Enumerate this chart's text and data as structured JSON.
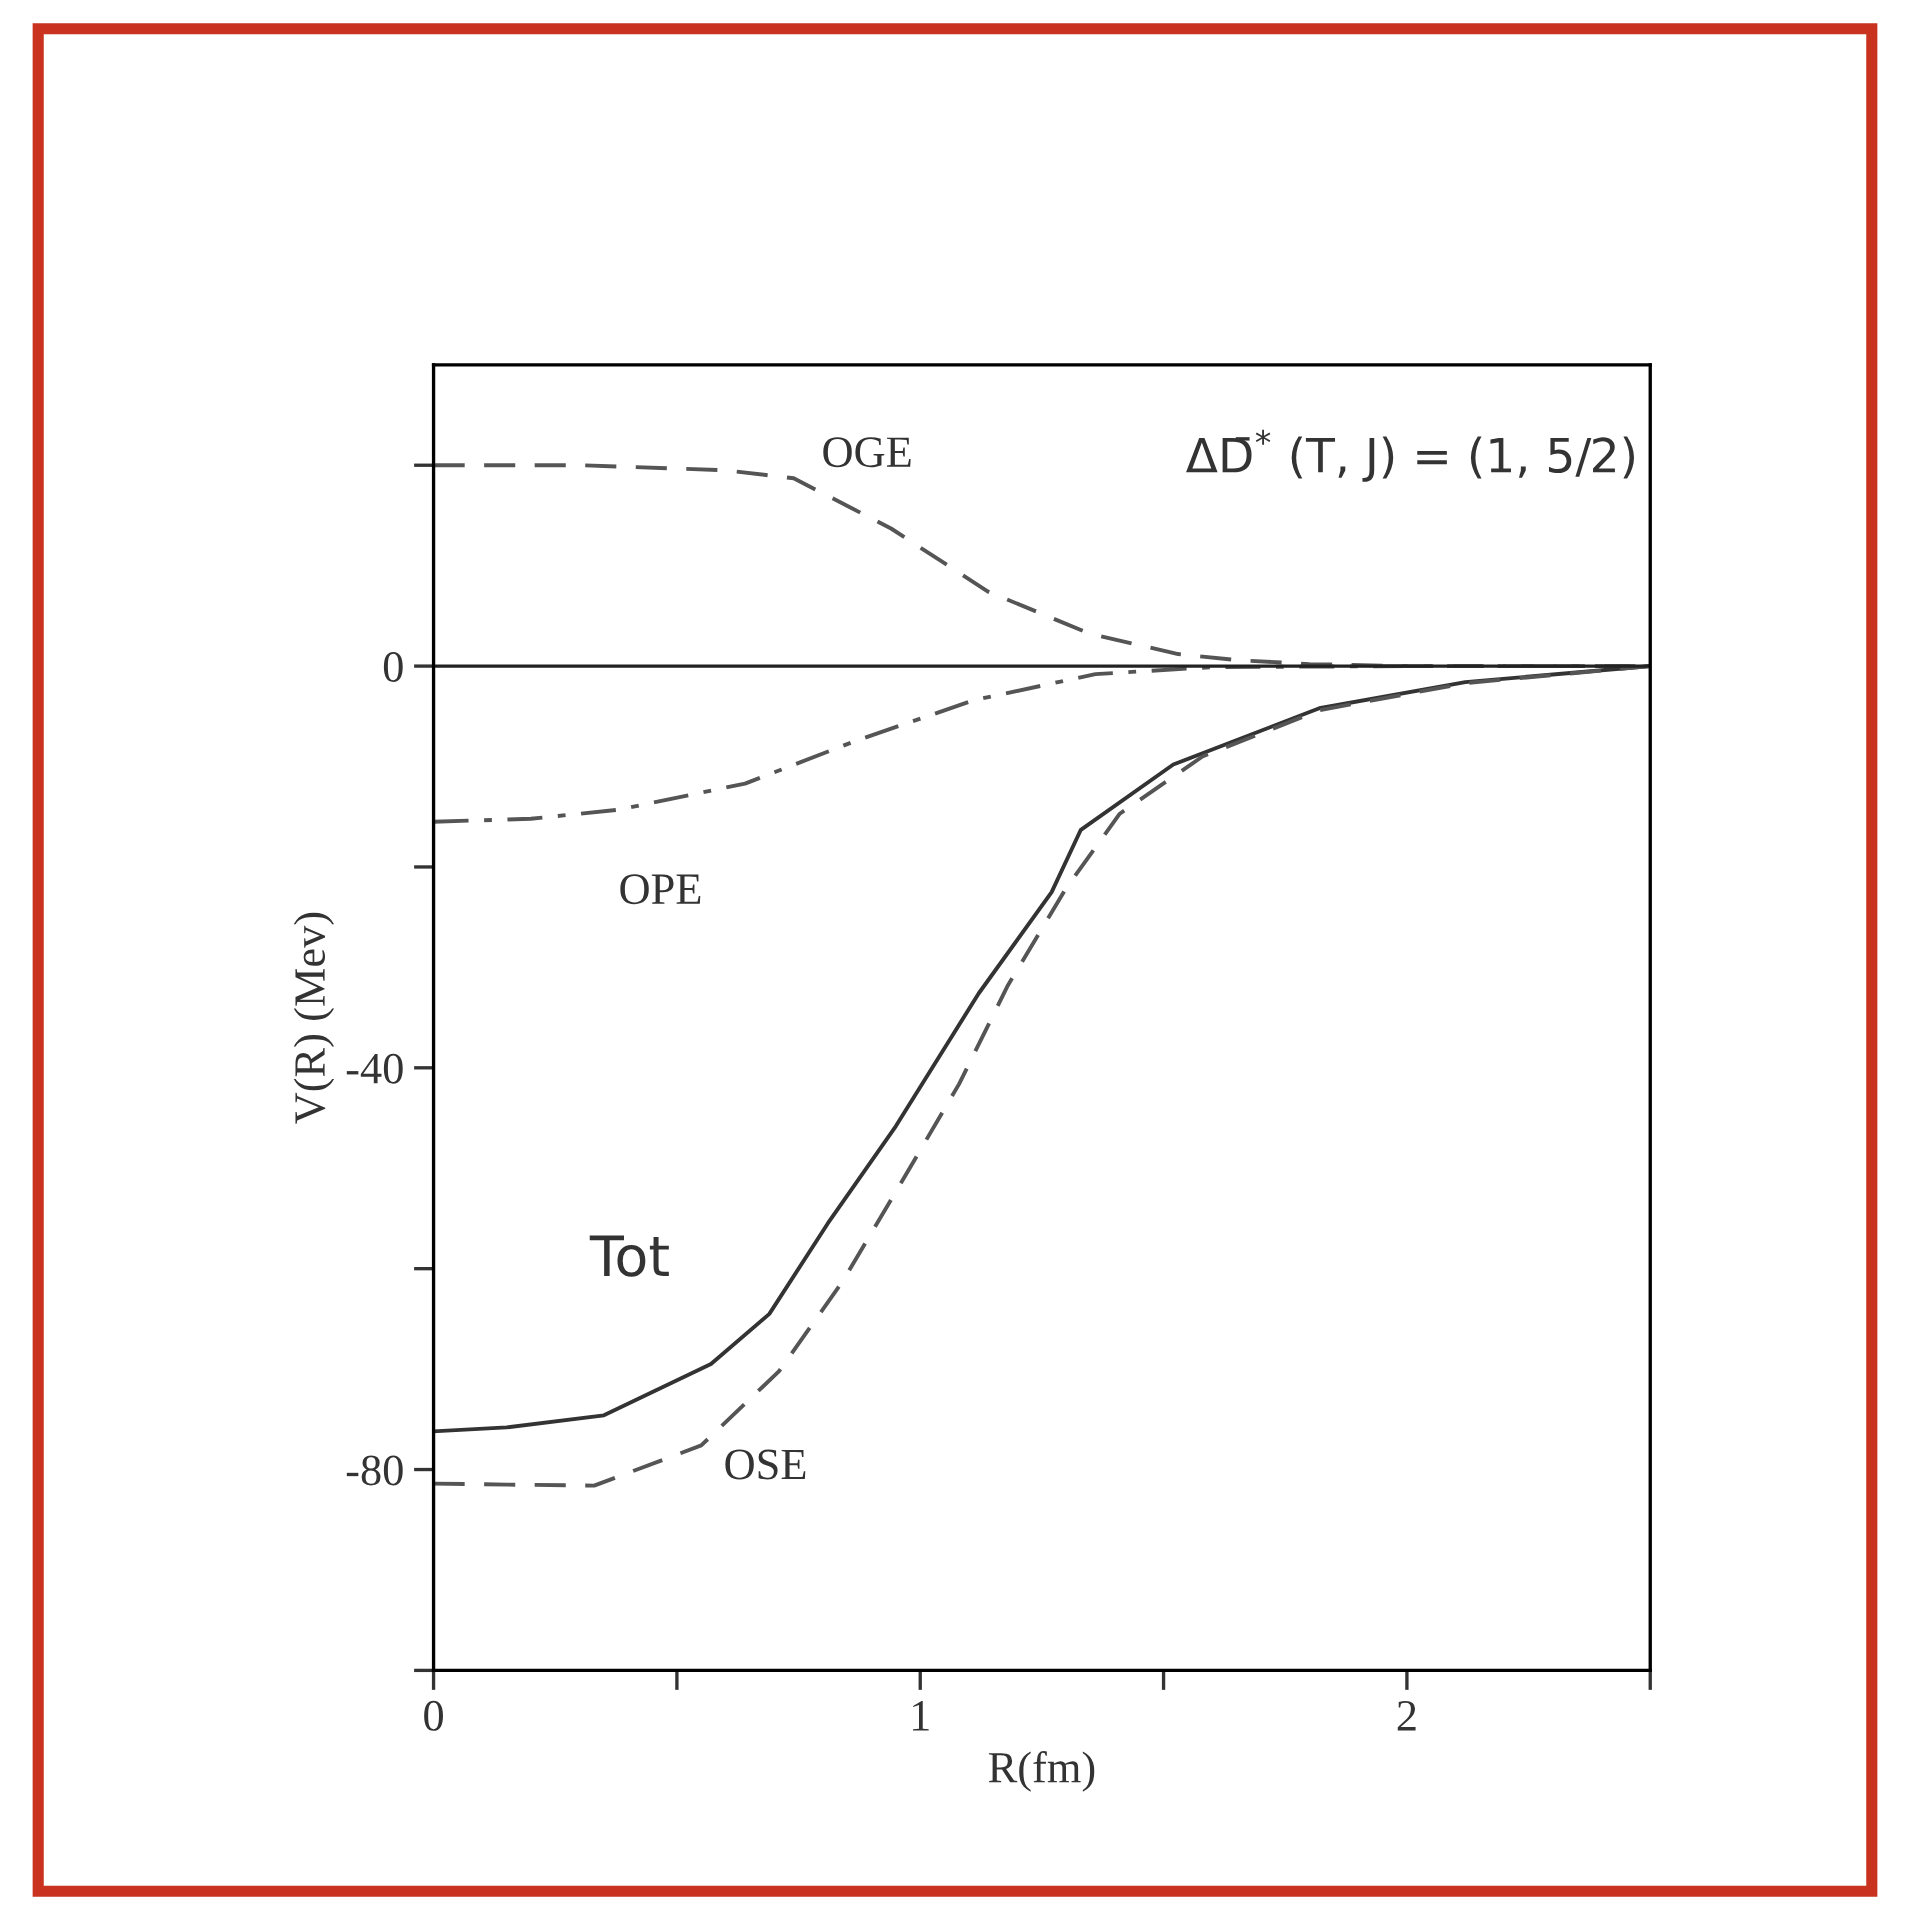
{
  "chart_data": {
    "type": "line",
    "xlabel": "R(fm)",
    "ylabel": "V(R) (Mev)",
    "annotations": [
      "ΔD̄$^{*}$ (T, J) = (1, 5/2)"
    ],
    "xlim": [
      0,
      2.5
    ],
    "ylim": [
      -100,
      30
    ],
    "xticks": [
      0,
      {
        "value": 0.5,
        "label": null
      },
      1,
      {
        "value": 1.5,
        "label": null
      },
      2,
      {
        "value": 2.5,
        "label": null
      }
    ],
    "yticks": [
      {
        "value": -100,
        "label": null
      },
      -80,
      {
        "value": -60,
        "label": null
      },
      -40,
      {
        "value": -20,
        "label": null
      },
      0,
      {
        "value": 20,
        "label": null
      }
    ],
    "grid": false,
    "legend": false,
    "marker": "none",
    "ref_lines": [
      {
        "axis": "y",
        "value": 0,
        "color": "#222222",
        "line_style": "solid"
      }
    ],
    "series": [
      {
        "name": "OGE",
        "color": "#555555",
        "line_style": "dashed",
        "x": [
          0,
          0.3,
          0.6,
          0.74,
          0.94,
          1.14,
          1.35,
          1.53,
          1.65,
          1.8,
          2.0,
          2.5
        ],
        "values": [
          20,
          20,
          19.5,
          18.7,
          13.7,
          7.4,
          3.2,
          1.2,
          0.6,
          0.2,
          0,
          0
        ]
      },
      {
        "name": "OPE",
        "color": "#555555",
        "line_style": "dashdot",
        "x": [
          0,
          0.2,
          0.38,
          0.64,
          0.87,
          1.11,
          1.36,
          1.6,
          2.0,
          2.5
        ],
        "values": [
          -15.5,
          -15.2,
          -14.3,
          -11.7,
          -7.4,
          -3.4,
          -0.8,
          -0.1,
          0,
          0
        ]
      },
      {
        "name": "Tot",
        "color": "#333333",
        "line_style": "solid",
        "x": [
          0,
          0.15,
          0.35,
          0.57,
          0.69,
          0.81,
          0.95,
          1.12,
          1.27,
          1.33,
          1.52,
          1.82,
          2.12,
          2.5
        ],
        "values": [
          -76.2,
          -75.8,
          -74.6,
          -69.5,
          -64.5,
          -55.5,
          -45.8,
          -32.6,
          -22.5,
          -16.3,
          -9.8,
          -4.2,
          -1.6,
          0
        ]
      },
      {
        "name": "OSE",
        "color": "#555555",
        "line_style": "dashed",
        "x": [
          0,
          0.15,
          0.33,
          0.55,
          0.71,
          0.84,
          0.96,
          1.08,
          1.18,
          1.3,
          1.41,
          1.58,
          1.82,
          2.12,
          2.5
        ],
        "values": [
          -81.4,
          -81.5,
          -81.6,
          -77.6,
          -70.2,
          -61.3,
          -51.5,
          -41.6,
          -31.8,
          -22.1,
          -14.7,
          -9,
          -4.4,
          -1.7,
          0
        ]
      }
    ]
  }
}
